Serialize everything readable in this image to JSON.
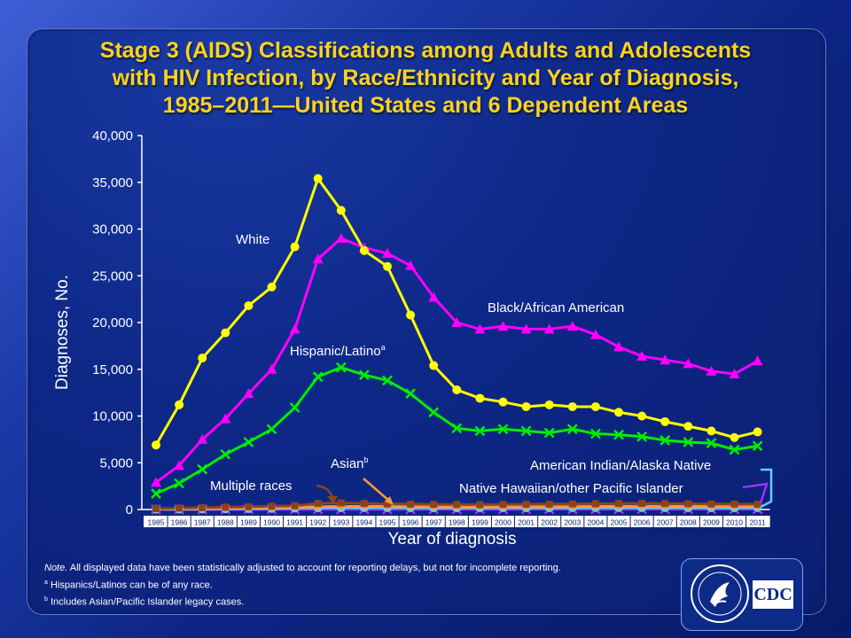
{
  "title_lines": [
    "Stage 3 (AIDS) Classifications among Adults and Adolescents",
    "with HIV Infection, by Race/Ethnicity and Year of Diagnosis,",
    "1985–2011—United States and 6 Dependent Areas"
  ],
  "notes": {
    "note_prefix": "Note.",
    "note_text": " All displayed data have been statistically adjusted to account for reporting delays, but not for incomplete reporting.",
    "footnote_a_mark": "a",
    "footnote_a": " Hispanics/Latinos can be of any race.",
    "footnote_b_mark": "b",
    "footnote_b": " Includes Asian/Pacific Islander legacy cases."
  },
  "logo": {
    "text": "CDC"
  },
  "colors": {
    "white": "#ffff00",
    "black": "#ff00ff",
    "hispanic": "#00ee00",
    "asian": "#ff9933",
    "multiple": "#8b4513",
    "aian": "#66ccff",
    "nhopi": "#9933ff",
    "title": "#ffd21e"
  },
  "chart_data": {
    "type": "line",
    "xlabel": "Year of diagnosis",
    "ylabel": "Diagnoses, No.",
    "ylim": [
      0,
      40000
    ],
    "yticks": [
      0,
      5000,
      10000,
      15000,
      20000,
      25000,
      30000,
      35000,
      40000
    ],
    "ytick_labels": [
      "0",
      "5,000",
      "10,000",
      "15,000",
      "20,000",
      "25,000",
      "30,000",
      "35,000",
      "40,000"
    ],
    "grid": false,
    "categories": [
      "1985",
      "1986",
      "1987",
      "1988",
      "1989",
      "1990",
      "1991",
      "1992",
      "1993",
      "1994",
      "1995",
      "1996",
      "1997",
      "1998",
      "1999",
      "2000",
      "2001",
      "2002",
      "2003",
      "2004",
      "2005",
      "2006",
      "2007",
      "2008",
      "2009",
      "2010",
      "2011"
    ],
    "series": [
      {
        "name": "White",
        "key": "white",
        "marker": "circle",
        "label": "White",
        "values": [
          6900,
          11200,
          16200,
          18900,
          21800,
          23800,
          28100,
          35400,
          32000,
          27700,
          26000,
          20800,
          15400,
          12800,
          11900,
          11500,
          11000,
          11200,
          11000,
          11000,
          10400,
          10000,
          9400,
          8900,
          8400,
          7700,
          8300
        ]
      },
      {
        "name": "Black/African American",
        "key": "black",
        "marker": "triangle",
        "label": "Black/African American",
        "values": [
          2900,
          4700,
          7500,
          9700,
          12400,
          15000,
          19300,
          26800,
          29000,
          28000,
          27400,
          26100,
          22700,
          20000,
          19300,
          19600,
          19300,
          19300,
          19600,
          18700,
          17400,
          16400,
          16000,
          15600,
          14800,
          14500,
          15900
        ]
      },
      {
        "name": "Hispanic/Latino",
        "key": "hispanic",
        "marker": "x",
        "label": "Hispanic/Latino",
        "label_sup": "a",
        "values": [
          1700,
          2800,
          4300,
          5900,
          7200,
          8600,
          10900,
          14200,
          15200,
          14400,
          13800,
          12400,
          10400,
          8700,
          8400,
          8600,
          8400,
          8200,
          8600,
          8100,
          8000,
          7800,
          7400,
          7200,
          7100,
          6400,
          6800
        ]
      },
      {
        "name": "Asian",
        "key": "asian",
        "marker": "diamond",
        "label": "Asian",
        "label_sup": "b",
        "values": [
          50,
          70,
          100,
          130,
          160,
          190,
          240,
          300,
          330,
          330,
          330,
          320,
          300,
          280,
          280,
          290,
          300,
          300,
          320,
          330,
          330,
          340,
          340,
          340,
          330,
          330,
          340
        ]
      },
      {
        "name": "Multiple races",
        "key": "multiple",
        "marker": "square",
        "label": "Multiple races",
        "values": [
          100,
          150,
          200,
          250,
          300,
          350,
          400,
          650,
          700,
          650,
          600,
          580,
          550,
          530,
          520,
          540,
          560,
          580,
          600,
          620,
          640,
          660,
          640,
          620,
          600,
          580,
          560
        ]
      },
      {
        "name": "American Indian/Alaska Native",
        "key": "aian",
        "marker": "circle",
        "label": "American Indian/Alaska Native",
        "values": [
          30,
          40,
          60,
          80,
          100,
          120,
          150,
          190,
          200,
          200,
          200,
          200,
          180,
          180,
          180,
          190,
          190,
          190,
          200,
          200,
          200,
          200,
          200,
          200,
          200,
          190,
          200
        ]
      },
      {
        "name": "Native Hawaiian/other Pacific Islander",
        "key": "nhopi",
        "marker": "x",
        "label": "Native Hawaiian/other Pacific Islander",
        "values": [
          5,
          5,
          5,
          10,
          10,
          10,
          15,
          20,
          20,
          20,
          20,
          20,
          20,
          20,
          20,
          20,
          30,
          30,
          30,
          30,
          40,
          40,
          40,
          40,
          40,
          40,
          40
        ]
      }
    ]
  }
}
